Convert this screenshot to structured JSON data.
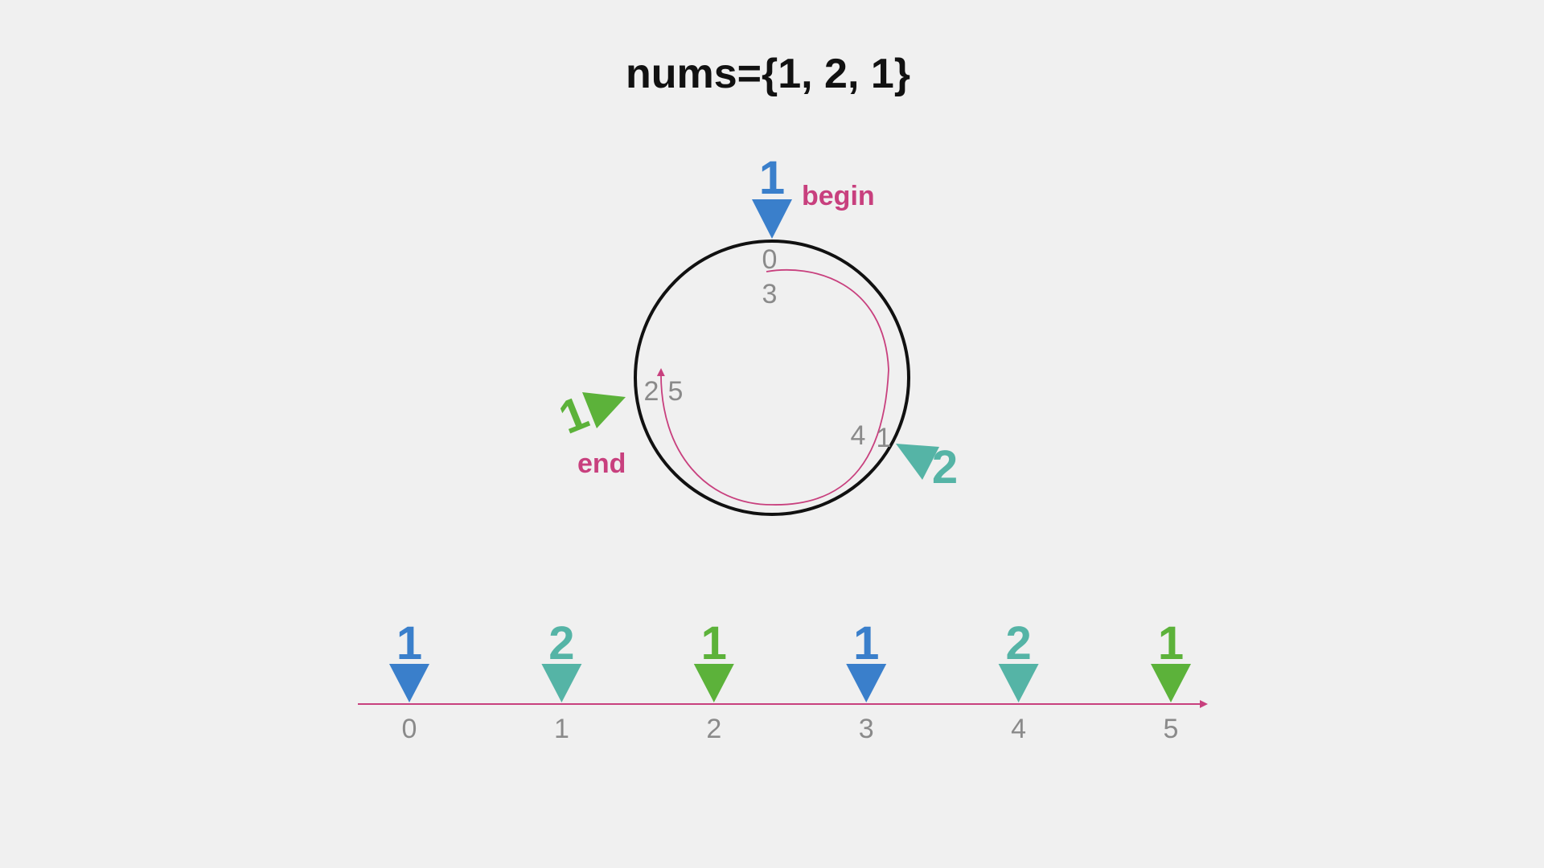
{
  "title": "nums={1, 2, 1}",
  "colors": {
    "blue": "#3a7fcb",
    "teal": "#55b4a6",
    "green": "#5cb23a",
    "magenta": "#c8407e",
    "gray": "#8a8a8a",
    "ring": "#111111"
  },
  "circle": {
    "begin_label": "begin",
    "end_label": "end",
    "markers": [
      {
        "value": "1",
        "color": "blue",
        "index_labels": [
          "0",
          "3"
        ]
      },
      {
        "value": "2",
        "color": "teal",
        "index_labels": [
          "4",
          "1"
        ]
      },
      {
        "value": "1",
        "color": "green",
        "index_labels": [
          "2",
          "5"
        ]
      }
    ]
  },
  "line": {
    "items": [
      {
        "value": "1",
        "index": "0",
        "color": "blue"
      },
      {
        "value": "2",
        "index": "1",
        "color": "teal"
      },
      {
        "value": "1",
        "index": "2",
        "color": "green"
      },
      {
        "value": "1",
        "index": "3",
        "color": "blue"
      },
      {
        "value": "2",
        "index": "4",
        "color": "teal"
      },
      {
        "value": "1",
        "index": "5",
        "color": "green"
      }
    ]
  }
}
